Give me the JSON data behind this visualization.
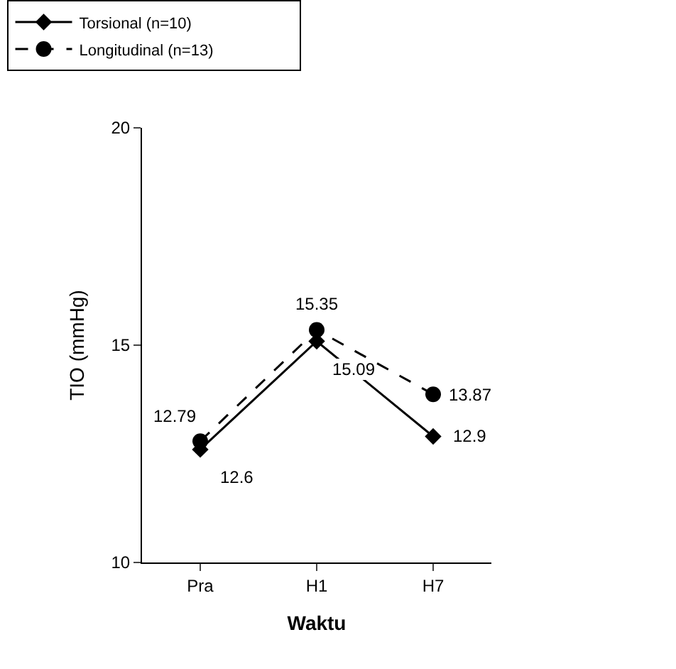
{
  "chart_data": {
    "type": "line",
    "xlabel": "Waktu",
    "ylabel": "TIO (mmHg)",
    "categories": [
      "Pra",
      "H1",
      "H7"
    ],
    "series": [
      {
        "name": "Torsional (n=10)",
        "color": "#000000",
        "values": [
          12.6,
          15.09,
          12.9
        ],
        "marker": "diamond",
        "line_style": "solid"
      },
      {
        "name": "Longitudinal (n=13)",
        "color": "#000000",
        "values": [
          12.79,
          15.35,
          13.87
        ],
        "marker": "circle",
        "line_style": "dashed"
      }
    ],
    "ylim": [
      10,
      20
    ],
    "yticks": [
      10,
      15,
      20
    ],
    "legend": "top",
    "data_labels": true
  }
}
